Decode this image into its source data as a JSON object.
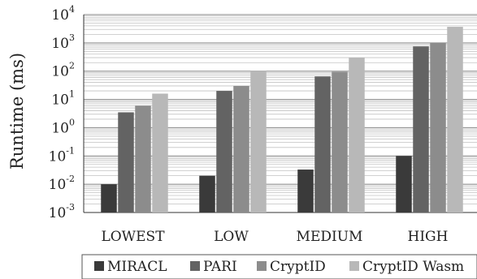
{
  "chart_data": {
    "type": "bar",
    "title": "",
    "xlabel": "",
    "ylabel": "Runtime (ms)",
    "yscale": "log",
    "ylim": [
      0.001,
      10000
    ],
    "yticks": [
      {
        "base": "10",
        "exp": "4"
      },
      {
        "base": "10",
        "exp": "3"
      },
      {
        "base": "10",
        "exp": "2"
      },
      {
        "base": "10",
        "exp": "1"
      },
      {
        "base": "10",
        "exp": "0"
      },
      {
        "base": "10",
        "exp": "-1"
      },
      {
        "base": "10",
        "exp": "-2"
      },
      {
        "base": "10",
        "exp": "-3"
      }
    ],
    "grid": "horizontal, major and minor",
    "legend_position": "bottom",
    "categories": [
      "LOWEST",
      "LOW",
      "MEDIUM",
      "HIGH"
    ],
    "series": [
      {
        "name": "MIRACL",
        "color": "#3a3a3a",
        "values": [
          0.01,
          0.02,
          0.033,
          0.1
        ]
      },
      {
        "name": "PARI",
        "color": "#636363",
        "values": [
          3.5,
          20,
          65,
          750
        ]
      },
      {
        "name": "CryptID",
        "color": "#8c8c8c",
        "values": [
          6,
          30,
          95,
          1000
        ]
      },
      {
        "name": "CryptID Wasm",
        "color": "#b8b8b8",
        "values": [
          16,
          100,
          300,
          3700
        ]
      }
    ]
  }
}
